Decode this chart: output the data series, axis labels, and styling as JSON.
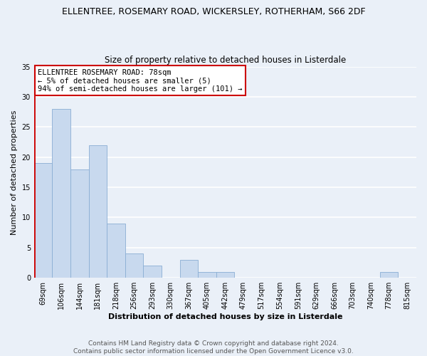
{
  "title": "ELLENTREE, ROSEMARY ROAD, WICKERSLEY, ROTHERHAM, S66 2DF",
  "subtitle": "Size of property relative to detached houses in Listerdale",
  "xlabel": "Distribution of detached houses by size in Listerdale",
  "ylabel": "Number of detached properties",
  "bar_color": "#c8d9ee",
  "bar_edge_color": "#8aaed4",
  "background_color": "#eaf0f8",
  "grid_color": "#ffffff",
  "bins": [
    "69sqm",
    "106sqm",
    "144sqm",
    "181sqm",
    "218sqm",
    "256sqm",
    "293sqm",
    "330sqm",
    "367sqm",
    "405sqm",
    "442sqm",
    "479sqm",
    "517sqm",
    "554sqm",
    "591sqm",
    "629sqm",
    "666sqm",
    "703sqm",
    "740sqm",
    "778sqm",
    "815sqm"
  ],
  "values": [
    19,
    28,
    18,
    22,
    9,
    4,
    2,
    0,
    3,
    1,
    1,
    0,
    0,
    0,
    0,
    0,
    0,
    0,
    0,
    1,
    0
  ],
  "ylim": [
    0,
    35
  ],
  "yticks": [
    0,
    5,
    10,
    15,
    20,
    25,
    30,
    35
  ],
  "annotation_title": "ELLENTREE ROSEMARY ROAD: 78sqm",
  "annotation_line2": "← 5% of detached houses are smaller (5)",
  "annotation_line3": "94% of semi-detached houses are larger (101) →",
  "annotation_box_color": "#ffffff",
  "annotation_border_color": "#cc0000",
  "footer_line1": "Contains HM Land Registry data © Crown copyright and database right 2024.",
  "footer_line2": "Contains public sector information licensed under the Open Government Licence v3.0.",
  "red_line_color": "#cc0000",
  "title_fontsize": 9,
  "subtitle_fontsize": 8.5,
  "ylabel_fontsize": 8,
  "xlabel_fontsize": 8,
  "tick_fontsize": 7,
  "footer_fontsize": 6.5,
  "annotation_fontsize": 7.5
}
